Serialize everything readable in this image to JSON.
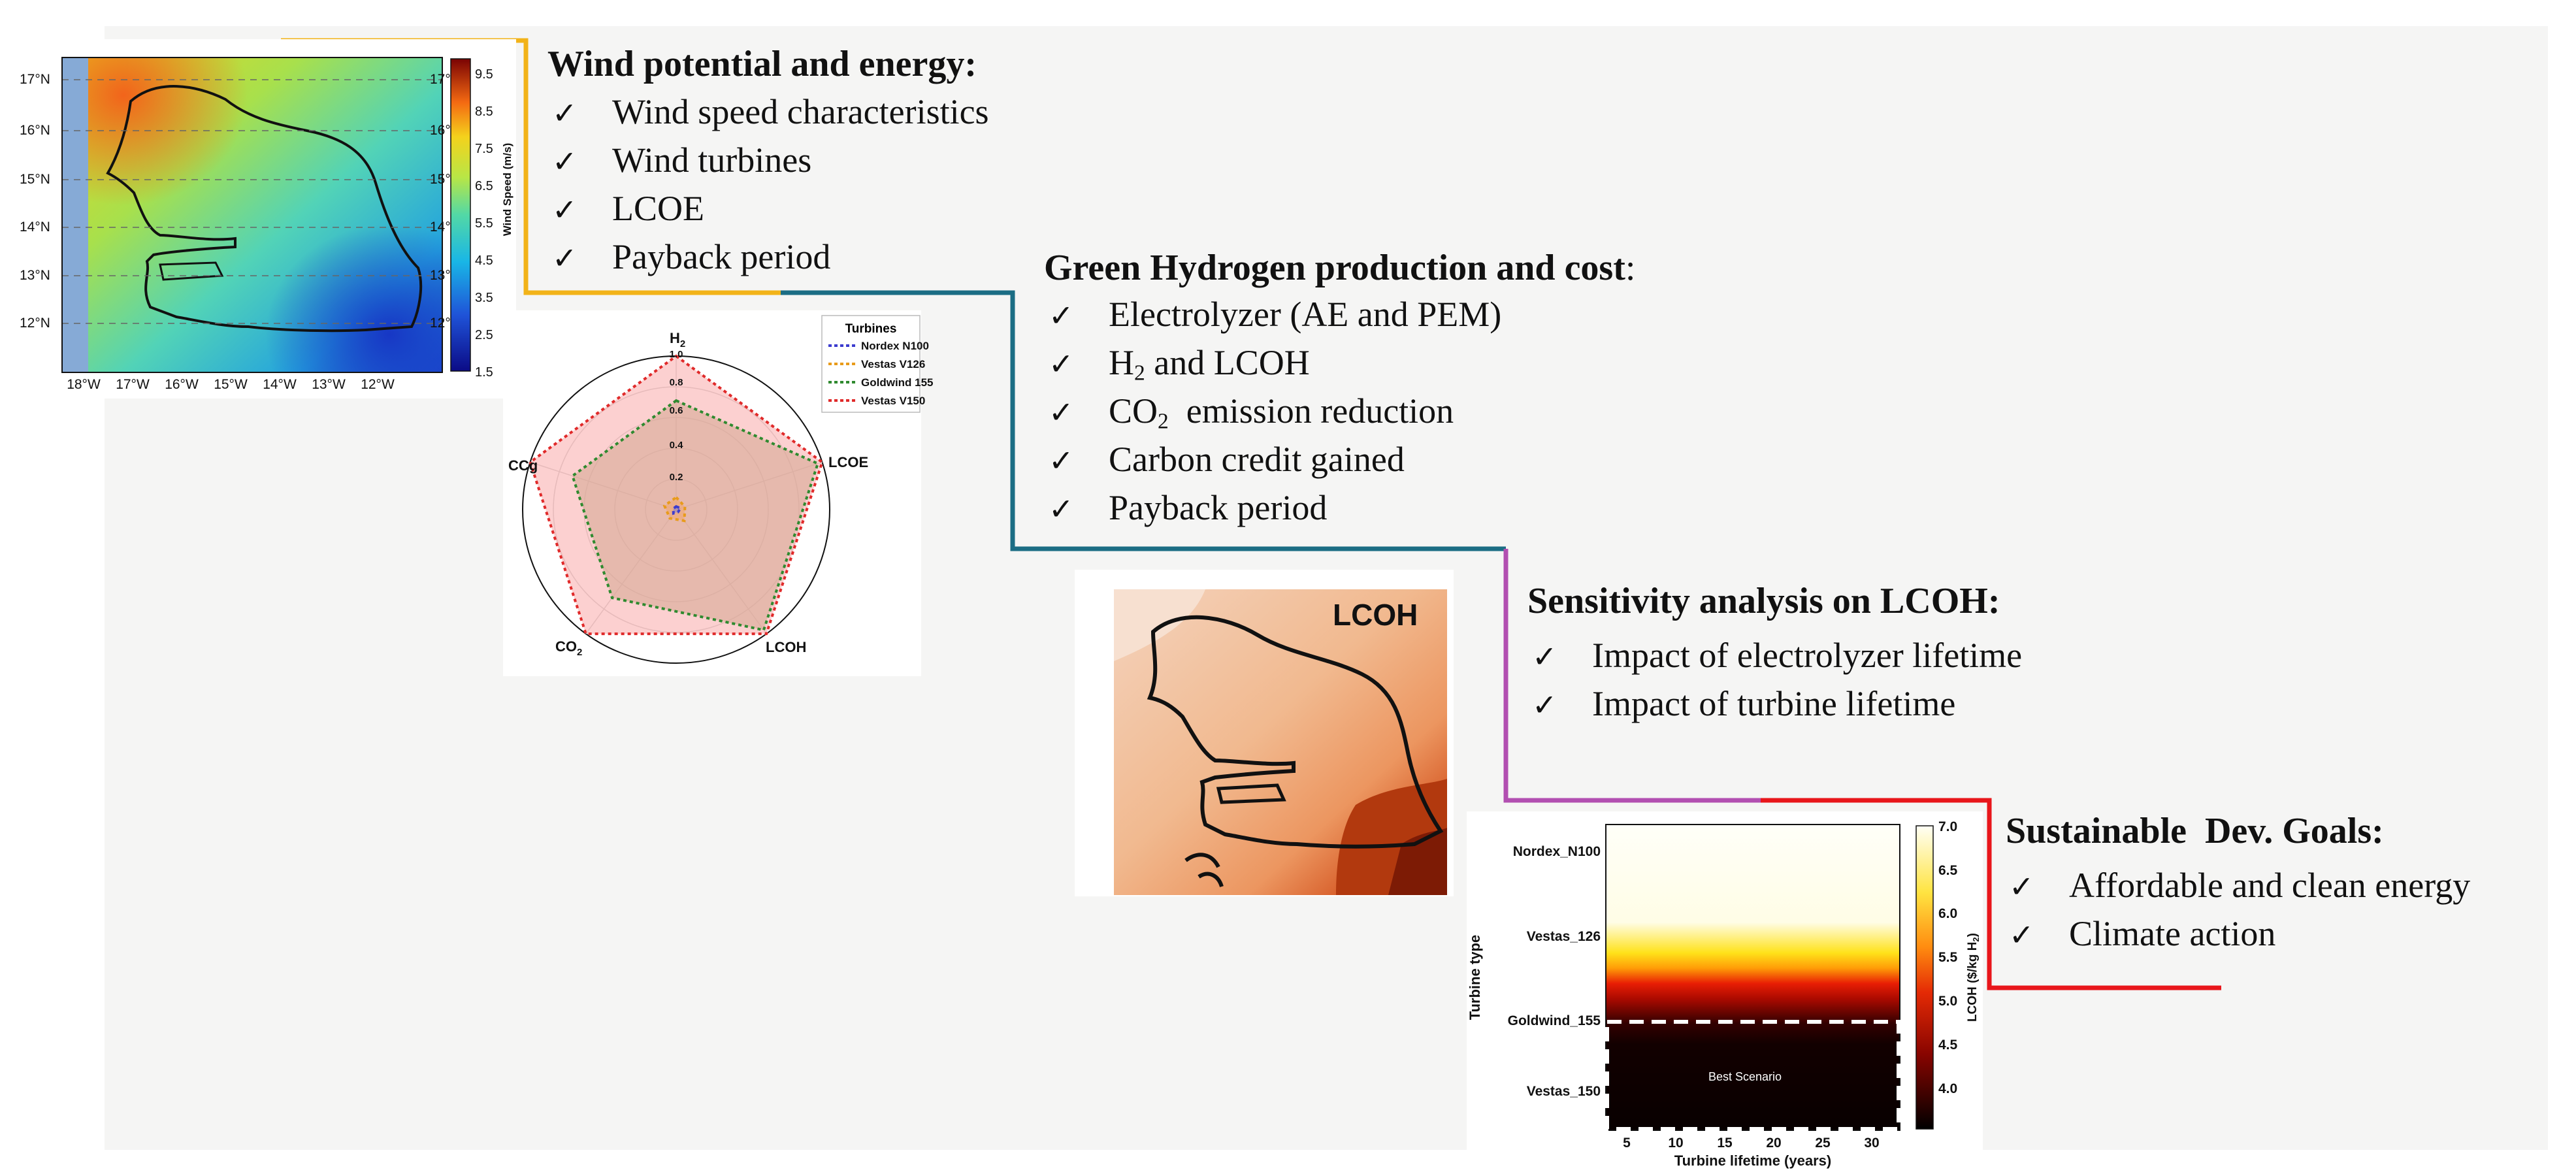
{
  "colors": {
    "connector_1": "#f2b319",
    "connector_2": "#1b6d84",
    "connector_3": "#b24fb1",
    "connector_4": "#e8161b",
    "nordex": "#3c3ccf",
    "vestas126": "#e89b1b",
    "goldwind": "#2f8a2f",
    "vestas150": "#e02a2a"
  },
  "sections": [
    {
      "title": "Wind potential and energy:",
      "items": [
        "Wind speed characteristics",
        "Wind turbines",
        "LCOE",
        "Payback period"
      ]
    },
    {
      "title": "Green Hydrogen production and cost",
      "title_suffix": ":",
      "items": [
        {
          "text": "Electrolyzer (AE and PEM)"
        },
        {
          "pre": "H",
          "sub": "2",
          "post": " and LCOH"
        },
        {
          "pre": "CO",
          "sub": "2",
          "post": "  emission reduction"
        },
        {
          "text": "Carbon credit gained"
        },
        {
          "text": "Payback period"
        }
      ]
    },
    {
      "title": "Sensitivity analysis on LCOH:",
      "items": [
        "Impact of electrolyzer lifetime",
        "Impact of turbine lifetime"
      ]
    },
    {
      "title": "Sustainable  Dev. Goals:",
      "items": [
        "Affordable and clean energy",
        "Climate action"
      ]
    }
  ],
  "wind_map": {
    "lat_labels": [
      "17°N",
      "16°N",
      "15°N",
      "14°N",
      "13°N",
      "12°N"
    ],
    "lon_labels": [
      "18°W",
      "17°W",
      "16°W",
      "15°W",
      "14°W",
      "13°W",
      "12°W"
    ],
    "right_lat_labels": [
      "17°",
      "16°",
      "15°",
      "14°",
      "13°",
      "12°"
    ],
    "colorbar_ticks": [
      "9.5",
      "8.5",
      "7.5",
      "6.5",
      "5.5",
      "4.5",
      "3.5",
      "2.5",
      "1.5"
    ],
    "colorbar_label": "Wind Speed (m/s)"
  },
  "radar": {
    "legend_title": "Turbines",
    "series_names": [
      "Nordex N100",
      "Vestas V126",
      "Goldwind 155",
      "Vestas V150"
    ],
    "axis_main": [
      "H",
      "LCOE",
      "LCOH",
      "CO",
      "CCg"
    ],
    "axis_sub": [
      "2",
      "",
      "",
      "2",
      ""
    ],
    "radial_ticks": [
      "1.0",
      "0.8",
      "0.6",
      "0.4",
      "0.2"
    ],
    "values": {
      "Nordex N100": [
        0.02,
        0.03,
        0.02,
        0.03,
        0.02
      ],
      "Vestas V126": [
        0.08,
        0.06,
        0.09,
        0.07,
        0.08
      ],
      "Goldwind 155": [
        0.71,
        0.97,
        0.97,
        0.71,
        0.71
      ],
      "Vestas V150": [
        1.0,
        1.0,
        1.0,
        1.0,
        1.0
      ]
    }
  },
  "lcoh_map": {
    "label": "LCOH"
  },
  "heatmap": {
    "y_label": "Turbine type",
    "x_label": "Turbine lifetime (years)",
    "categories": [
      "Nordex_N100",
      "Vestas_126",
      "Goldwind_155",
      "Vestas_150"
    ],
    "x_ticks": [
      "5",
      "10",
      "15",
      "20",
      "25",
      "30"
    ],
    "colorbar_ticks": [
      "7.0",
      "6.5",
      "6.0",
      "5.5",
      "5.0",
      "4.5",
      "4.0"
    ],
    "colorbar_label_main": "LCOH ($/kg H",
    "colorbar_label_sub": "2",
    "colorbar_label_end": ")",
    "annotation": "Best Scenario"
  }
}
